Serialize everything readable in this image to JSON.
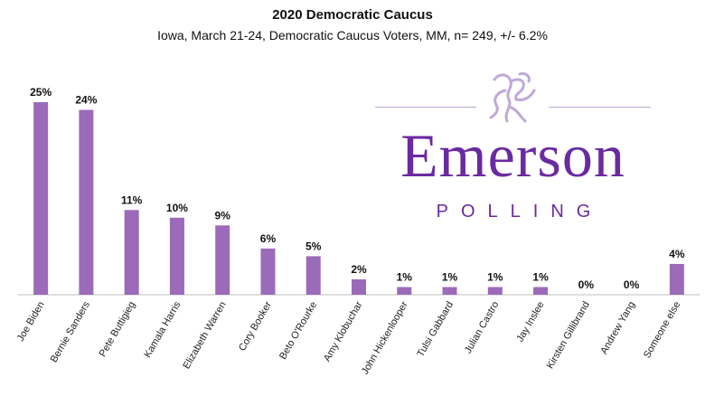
{
  "title": "2020 Democratic Caucus",
  "subtitle": "Iowa, March 21-24, Democratic Caucus Voters, MM, n= 249, +/- 6.2%",
  "logo": {
    "brand": "Emerson",
    "sub": "POLLING",
    "color": "#6a2aa0"
  },
  "colors": {
    "bar": "#9b6bb9",
    "axis": "#bfbfbf"
  },
  "chart_data": {
    "type": "bar",
    "categories": [
      "Joe Biden",
      "Bernie Sanders",
      "Pete Buttigieg",
      "Kamala Harris",
      "Elizabeth Warren",
      "Cory Booker",
      "Beto O'Rourke",
      "Amy Klobuchar",
      "John Hickenlooper",
      "Tulsi Gabbard",
      "Julian Castro",
      "Jay Inslee",
      "Kirsten Gillibrand",
      "Andrew Yang",
      "Someone else"
    ],
    "values": [
      25,
      24,
      11,
      10,
      9,
      6,
      5,
      2,
      1,
      1,
      1,
      1,
      0,
      0,
      4
    ],
    "data_labels": [
      "25%",
      "24%",
      "11%",
      "10%",
      "9%",
      "6%",
      "5%",
      "2%",
      "1%",
      "1%",
      "1%",
      "1%",
      "0%",
      "0%",
      "4%"
    ],
    "ylim": [
      0,
      25
    ],
    "grid": false,
    "legend": "none",
    "xlabel": "",
    "ylabel": ""
  }
}
